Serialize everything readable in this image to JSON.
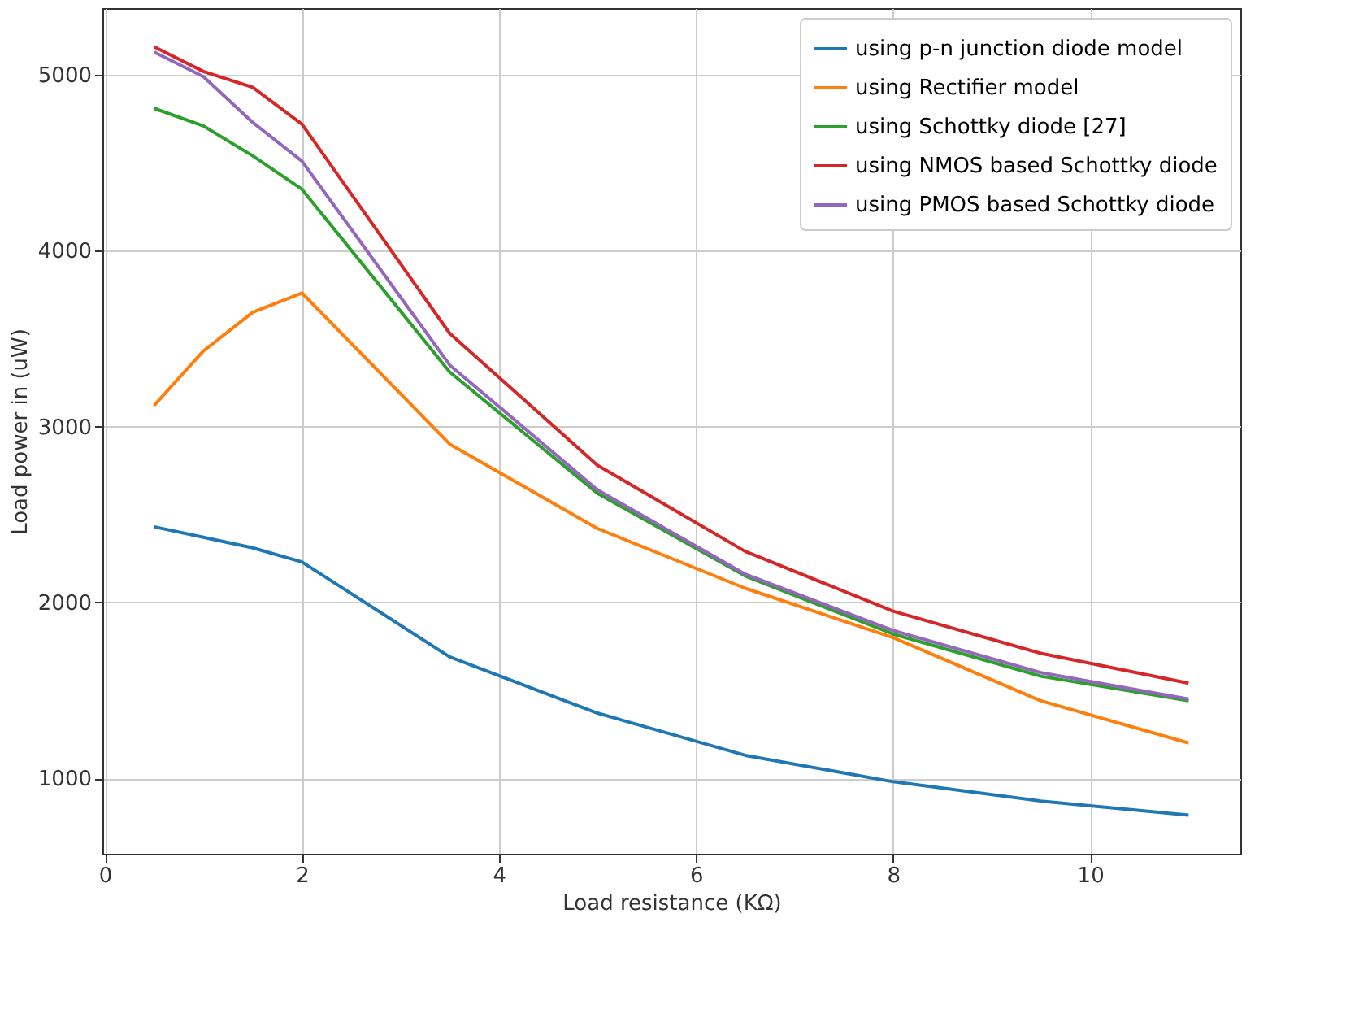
{
  "chart_data": {
    "type": "line",
    "xlabel": "Load resistance (KΩ)",
    "ylabel": "Load power in (uW)",
    "x": [
      0.5,
      1,
      1.5,
      2,
      3.5,
      5,
      6.5,
      8,
      9.5,
      11
    ],
    "xlim": [
      -0.025,
      11.525
    ],
    "xticks": [
      0,
      2,
      4,
      6,
      8,
      10
    ],
    "ylim": [
      570,
      5380
    ],
    "yticks": [
      1000,
      2000,
      3000,
      4000,
      5000
    ],
    "grid": true,
    "legend": "top right",
    "line_style": "solid",
    "marker": "none",
    "series": [
      {
        "name": "using p-n junction diode model",
        "color": "#1f77b4",
        "values": [
          2430,
          2370,
          2310,
          2230,
          1690,
          1370,
          1130,
          980,
          870,
          790
        ]
      },
      {
        "name": "using Rectifier model",
        "color": "#ff7f0e",
        "values": [
          3120,
          3430,
          3650,
          3760,
          2900,
          2420,
          2080,
          1800,
          1440,
          1200
        ]
      },
      {
        "name": "using Schottky diode [27]",
        "color": "#2ca02c",
        "values": [
          4810,
          4710,
          4540,
          4350,
          3310,
          2620,
          2150,
          1820,
          1580,
          1440
        ]
      },
      {
        "name": "using NMOS based Schottky diode",
        "color": "#d62728",
        "values": [
          5160,
          5020,
          4930,
          4720,
          3530,
          2780,
          2290,
          1950,
          1710,
          1540
        ]
      },
      {
        "name": "using PMOS based Schottky diode",
        "color": "#9467bd",
        "values": [
          5130,
          4990,
          4730,
          4510,
          3350,
          2640,
          2160,
          1840,
          1600,
          1450
        ]
      }
    ]
  }
}
